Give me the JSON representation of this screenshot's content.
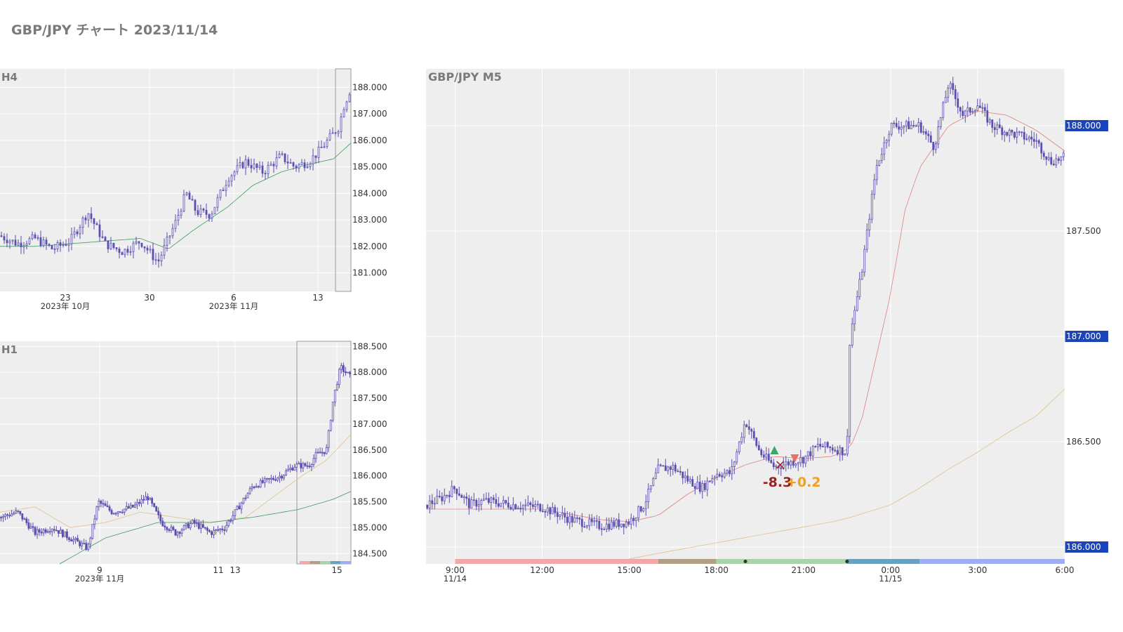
{
  "page_title": "GBP/JPY チャート 2023/11/14",
  "colors": {
    "panel_bg": "#eeeeee",
    "grid": "#ffffff",
    "candle": "#5b4fb0",
    "ma_fast": "#3a9a5c",
    "ma_mid": "#e08080",
    "ma_slow": "#e0c08a",
    "price_badge": "#1a44b8",
    "axis_text": "#333333",
    "panel_label": "#7a7a7a",
    "buy_marker": "#3aa86a",
    "sell_marker": "#e8706a",
    "loss_text": "#9a1f1f",
    "gain_text": "#f0a020",
    "session_bar": [
      "#f2a8aa",
      "#b0a085",
      "#a8d4a8",
      "#6aa0c0",
      "#a0aef0"
    ]
  },
  "chart_data": [
    {
      "type": "candlestick",
      "title": "H4",
      "x_ticks": [
        {
          "label": "23",
          "sublabel": "2023年 10月"
        },
        {
          "label": "30",
          "sublabel": ""
        },
        {
          "label": "6",
          "sublabel": "2023年 11月"
        },
        {
          "label": "13",
          "sublabel": ""
        }
      ],
      "y_ticks": [
        "181.000",
        "182.000",
        "183.000",
        "184.000",
        "185.000",
        "186.000",
        "187.000",
        "188.000"
      ],
      "ylim": [
        180.3,
        188.7
      ],
      "grid": true,
      "moving_averages": [
        "fast"
      ],
      "highlight_region": "last 1.2 days",
      "close_path": [
        [
          0,
          182.4
        ],
        [
          0.05,
          182.1
        ],
        [
          0.1,
          182.3
        ],
        [
          0.15,
          181.9
        ],
        [
          0.2,
          182.2
        ],
        [
          0.25,
          183.3
        ],
        [
          0.3,
          182.1
        ],
        [
          0.35,
          181.8
        ],
        [
          0.4,
          182.2
        ],
        [
          0.45,
          181.4
        ],
        [
          0.5,
          182.9
        ],
        [
          0.53,
          184.0
        ],
        [
          0.56,
          183.3
        ],
        [
          0.6,
          183.2
        ],
        [
          0.65,
          184.6
        ],
        [
          0.7,
          185.2
        ],
        [
          0.75,
          184.8
        ],
        [
          0.8,
          185.4
        ],
        [
          0.84,
          185.0
        ],
        [
          0.88,
          185.2
        ],
        [
          0.91,
          185.6
        ],
        [
          0.94,
          186.1
        ],
        [
          0.965,
          186.5
        ],
        [
          0.98,
          187.3
        ],
        [
          1.0,
          188.0
        ]
      ],
      "ma_path": [
        [
          0,
          182.0
        ],
        [
          0.1,
          182.0
        ],
        [
          0.2,
          182.1
        ],
        [
          0.3,
          182.2
        ],
        [
          0.4,
          182.3
        ],
        [
          0.48,
          181.9
        ],
        [
          0.55,
          182.6
        ],
        [
          0.65,
          183.5
        ],
        [
          0.72,
          184.3
        ],
        [
          0.8,
          184.8
        ],
        [
          0.88,
          185.1
        ],
        [
          0.95,
          185.3
        ],
        [
          1.0,
          185.9
        ]
      ]
    },
    {
      "type": "candlestick",
      "title": "H1",
      "x_ticks": [
        {
          "label": "9",
          "sublabel": "2023年 11月"
        },
        {
          "label": "11",
          "sublabel": ""
        },
        {
          "label": "13",
          "sublabel": ""
        },
        {
          "label": "15",
          "sublabel": ""
        }
      ],
      "y_ticks": [
        "184.500",
        "185.000",
        "185.500",
        "186.000",
        "186.500",
        "187.000",
        "187.500",
        "188.000",
        "188.500"
      ],
      "ylim": [
        184.3,
        188.6
      ],
      "grid": true,
      "moving_averages": [
        "fast",
        "slow"
      ],
      "highlight_region": "14 Nov – 15 Nov",
      "close_path": [
        [
          0,
          185.2
        ],
        [
          0.05,
          185.3
        ],
        [
          0.1,
          184.9
        ],
        [
          0.15,
          185.0
        ],
        [
          0.2,
          184.8
        ],
        [
          0.25,
          184.6
        ],
        [
          0.28,
          185.5
        ],
        [
          0.32,
          185.3
        ],
        [
          0.38,
          185.4
        ],
        [
          0.42,
          185.6
        ],
        [
          0.46,
          185.1
        ],
        [
          0.5,
          184.9
        ],
        [
          0.55,
          185.1
        ],
        [
          0.6,
          184.9
        ],
        [
          0.64,
          185.0
        ],
        [
          0.68,
          185.4
        ],
        [
          0.72,
          185.8
        ],
        [
          0.76,
          185.9
        ],
        [
          0.8,
          186.0
        ],
        [
          0.84,
          186.2
        ],
        [
          0.88,
          186.2
        ],
        [
          0.9,
          186.4
        ],
        [
          0.93,
          186.5
        ],
        [
          0.95,
          187.5
        ],
        [
          0.97,
          188.1
        ],
        [
          1.0,
          187.9
        ]
      ],
      "ma_fast_path": [
        [
          0.17,
          184.3
        ],
        [
          0.3,
          184.8
        ],
        [
          0.45,
          185.1
        ],
        [
          0.6,
          185.1
        ],
        [
          0.72,
          185.2
        ],
        [
          0.85,
          185.35
        ],
        [
          0.95,
          185.55
        ],
        [
          1.0,
          185.7
        ]
      ],
      "ma_slow_path": [
        [
          0,
          185.3
        ],
        [
          0.1,
          185.4
        ],
        [
          0.2,
          185.0
        ],
        [
          0.3,
          185.1
        ],
        [
          0.4,
          185.3
        ],
        [
          0.5,
          185.2
        ],
        [
          0.6,
          185.1
        ],
        [
          0.7,
          185.2
        ],
        [
          0.78,
          185.6
        ],
        [
          0.86,
          186.0
        ],
        [
          0.93,
          186.3
        ],
        [
          1.0,
          186.8
        ]
      ]
    },
    {
      "type": "candlestick",
      "title": "GBP/JPY M5",
      "x_ticks": [
        {
          "label": "9:00",
          "sublabel": "11/14"
        },
        {
          "label": "12:00",
          "sublabel": ""
        },
        {
          "label": "15:00",
          "sublabel": ""
        },
        {
          "label": "18:00",
          "sublabel": ""
        },
        {
          "label": "21:00",
          "sublabel": ""
        },
        {
          "label": "0:00",
          "sublabel": "11/15"
        },
        {
          "label": "3:00",
          "sublabel": ""
        },
        {
          "label": "6:00",
          "sublabel": ""
        }
      ],
      "x_range_hours": [
        8,
        30
      ],
      "y_ticks": [
        "186.000",
        "186.500",
        "187.000",
        "187.500",
        "188.000"
      ],
      "ylim": [
        185.92,
        188.27
      ],
      "price_badges": [
        "188.000",
        "187.000",
        "186.000"
      ],
      "grid": true,
      "close_path": [
        [
          8.0,
          186.2
        ],
        [
          8.5,
          186.23
        ],
        [
          9.0,
          186.28
        ],
        [
          9.5,
          186.2
        ],
        [
          10.0,
          186.22
        ],
        [
          11.0,
          186.2
        ],
        [
          12.0,
          186.19
        ],
        [
          13.0,
          186.13
        ],
        [
          14.0,
          186.1
        ],
        [
          15.0,
          186.12
        ],
        [
          15.5,
          186.2
        ],
        [
          16.0,
          186.37
        ],
        [
          16.5,
          186.38
        ],
        [
          17.0,
          186.32
        ],
        [
          17.5,
          186.28
        ],
        [
          18.0,
          186.35
        ],
        [
          18.5,
          186.35
        ],
        [
          19.0,
          186.6
        ],
        [
          19.5,
          186.45
        ],
        [
          20.0,
          186.38
        ],
        [
          20.5,
          186.4
        ],
        [
          21.0,
          186.42
        ],
        [
          21.5,
          186.48
        ],
        [
          22.0,
          186.47
        ],
        [
          22.5,
          186.45
        ],
        [
          22.6,
          187.0
        ],
        [
          23.0,
          187.3
        ],
        [
          23.5,
          187.8
        ],
        [
          24.0,
          188.0
        ],
        [
          24.5,
          188.0
        ],
        [
          25.0,
          188.0
        ],
        [
          25.5,
          187.9
        ],
        [
          26.0,
          188.2
        ],
        [
          26.5,
          188.05
        ],
        [
          27.0,
          188.1
        ],
        [
          27.5,
          188.0
        ],
        [
          28.0,
          187.97
        ],
        [
          28.5,
          187.95
        ],
        [
          29.0,
          187.93
        ],
        [
          29.5,
          187.83
        ],
        [
          30.0,
          187.85
        ]
      ],
      "ma_mid_path": [
        [
          8.0,
          186.18
        ],
        [
          10.0,
          186.18
        ],
        [
          12.0,
          186.18
        ],
        [
          14.0,
          186.13
        ],
        [
          15.0,
          186.12
        ],
        [
          16.0,
          186.15
        ],
        [
          17.0,
          186.25
        ],
        [
          18.0,
          186.33
        ],
        [
          19.0,
          186.39
        ],
        [
          20.0,
          186.43
        ],
        [
          21.0,
          186.42
        ],
        [
          22.0,
          186.43
        ],
        [
          22.6,
          186.47
        ],
        [
          23.0,
          186.6
        ],
        [
          24.0,
          187.2
        ],
        [
          24.5,
          187.6
        ],
        [
          25.0,
          187.8
        ],
        [
          26.0,
          188.0
        ],
        [
          27.0,
          188.07
        ],
        [
          28.0,
          188.05
        ],
        [
          29.0,
          187.98
        ],
        [
          30.0,
          187.88
        ]
      ],
      "ma_slow_path": [
        [
          14.5,
          185.93
        ],
        [
          16.0,
          185.97
        ],
        [
          18.0,
          186.02
        ],
        [
          20.0,
          186.07
        ],
        [
          22.0,
          186.12
        ],
        [
          22.6,
          186.14
        ],
        [
          24.0,
          186.2
        ],
        [
          25.0,
          186.28
        ],
        [
          26.0,
          186.37
        ],
        [
          27.0,
          186.45
        ],
        [
          28.0,
          186.54
        ],
        [
          29.0,
          186.62
        ],
        [
          30.0,
          186.75
        ]
      ],
      "session_bar": [
        {
          "from": 9.0,
          "to": 16.0
        },
        {
          "from": 16.0,
          "to": 18.0
        },
        {
          "from": 18.0,
          "to": 22.5
        },
        {
          "from": 22.5,
          "to": 25.0
        },
        {
          "from": 25.0,
          "to": 30.0
        }
      ],
      "session_dots": [
        19.0,
        22.5
      ],
      "trades": [
        {
          "type": "buy",
          "time": 20.0,
          "price": 186.46
        },
        {
          "type": "exit",
          "time": 20.2,
          "price": 186.39
        },
        {
          "type": "sell",
          "time": 20.7,
          "price": 186.42
        }
      ],
      "trade_labels": [
        {
          "text": "-8.3",
          "kind": "loss",
          "time": 20.1,
          "price": 186.32
        },
        {
          "text": "+0.2",
          "kind": "gain",
          "time": 21.0,
          "price": 186.32
        }
      ]
    }
  ]
}
